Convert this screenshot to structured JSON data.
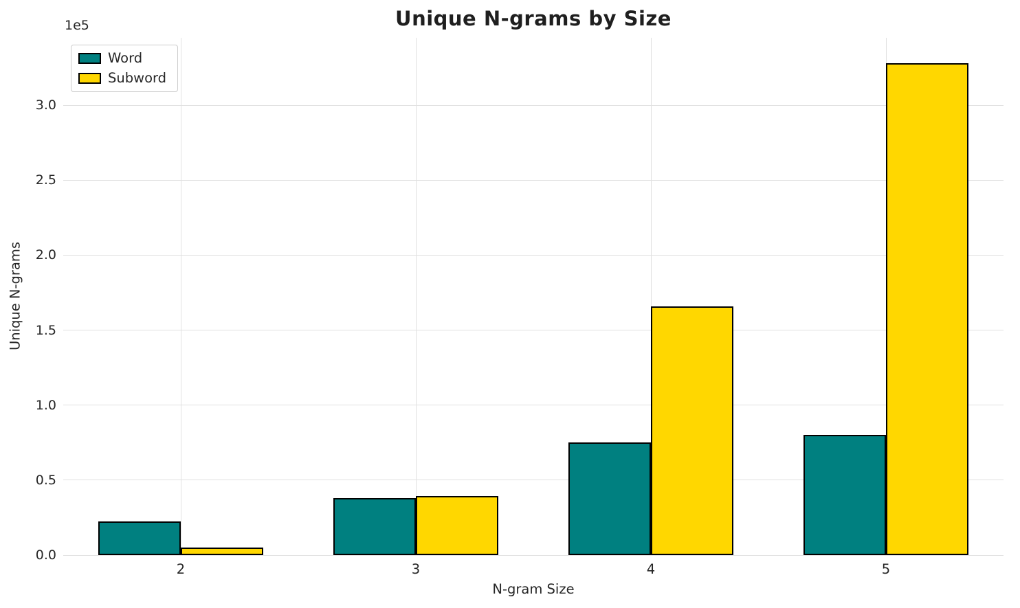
{
  "chart_data": {
    "type": "bar",
    "title": "Unique N-grams by Size",
    "xlabel": "N-gram Size",
    "ylabel": "Unique N-grams",
    "y_axis_offset": "1e5",
    "categories": [
      "2",
      "3",
      "4",
      "5"
    ],
    "series": [
      {
        "name": "Word",
        "color": "#008080",
        "values": [
          22500,
          38000,
          75000,
          80000
        ]
      },
      {
        "name": "Subword",
        "color": "#FFD700",
        "values": [
          5000,
          39500,
          166000,
          328000
        ]
      }
    ],
    "ylim": [
      0,
      345000
    ],
    "yticks": [
      0,
      50000,
      100000,
      150000,
      200000,
      250000,
      300000
    ],
    "ytick_labels": [
      "0.0",
      "0.5",
      "1.0",
      "1.5",
      "2.0",
      "2.5",
      "3.0"
    ],
    "grid": true,
    "legend_position": "upper left",
    "bar_edge_color": "#000000",
    "bar_group_width_fraction": 0.7
  }
}
